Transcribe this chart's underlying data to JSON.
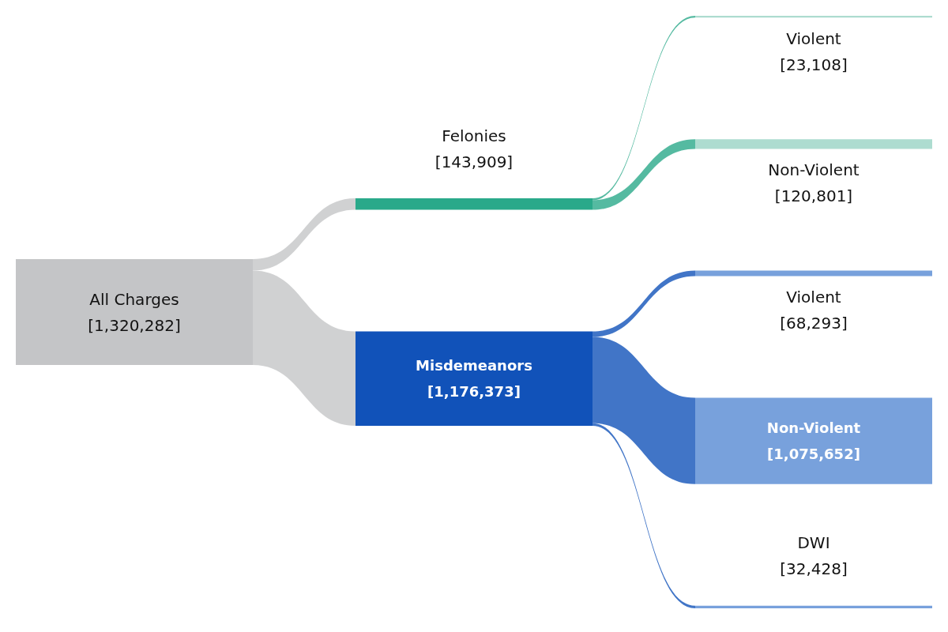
{
  "chart_data": {
    "type": "other",
    "categories": [
      "All Charges",
      "Felonies",
      "Misdemeanors",
      "Violent",
      "Non-Violent",
      "Violent",
      "Non-Violent",
      "DWI"
    ],
    "colors": [
      "#c4c5c7",
      "#2aa98a",
      "#1152b9",
      "#addcd0",
      "#addcd0",
      "#78a1dc",
      "#78a1dc",
      "#78a1dc"
    ],
    "series": [
      {
        "values": [
          1320282,
          null,
          null,
          null,
          null,
          null,
          null,
          null
        ],
        "value_labels": [
          "[1,320,282]",
          null,
          null,
          null,
          null,
          null,
          null,
          null
        ]
      },
      {
        "values": [
          null,
          143909,
          1176373,
          null,
          null,
          null,
          null,
          null
        ],
        "value_labels": [
          null,
          "[143,909]",
          "[1,176,373]",
          null,
          null,
          null,
          null,
          null
        ]
      },
      {
        "values": [
          null,
          null,
          null,
          23108,
          120801,
          68293,
          1075652,
          32428
        ],
        "value_labels": [
          null,
          null,
          null,
          "[23,108]",
          "[120,801]",
          "[68,293]",
          "[1,075,652]",
          "[32,428]"
        ]
      }
    ]
  }
}
